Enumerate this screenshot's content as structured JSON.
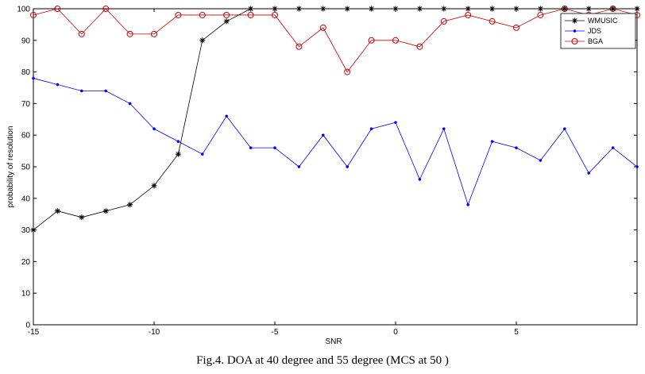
{
  "chart_data": {
    "type": "line",
    "xlabel": "SNR",
    "ylabel": "probability of resolution",
    "xlim": [
      -15,
      10
    ],
    "ylim": [
      0,
      100
    ],
    "xticks": [
      -15,
      -10,
      -5,
      0,
      5
    ],
    "yticks": [
      0,
      10,
      20,
      30,
      40,
      50,
      60,
      70,
      80,
      90,
      100
    ],
    "grid": false,
    "legend_position": "top-right",
    "x": [
      -15,
      -14,
      -13,
      -12,
      -11,
      -10,
      -9,
      -8,
      -7,
      -6,
      -5,
      -4,
      -3,
      -2,
      -1,
      0,
      1,
      2,
      3,
      4,
      5,
      6,
      7,
      8,
      9,
      10
    ],
    "series": [
      {
        "name": "WMUSIC",
        "color": "#000000",
        "marker": "star",
        "values": [
          30,
          36,
          34,
          36,
          38,
          44,
          54,
          90,
          96,
          100,
          100,
          100,
          100,
          100,
          100,
          100,
          100,
          100,
          100,
          100,
          100,
          100,
          100,
          100,
          100,
          100
        ]
      },
      {
        "name": "JDS",
        "color": "#0000ff",
        "marker": "dot",
        "values": [
          78,
          76,
          74,
          74,
          70,
          62,
          58,
          54,
          66,
          56,
          56,
          50,
          60,
          50,
          62,
          64,
          46,
          62,
          38,
          58,
          56,
          52,
          62,
          48,
          56,
          50
        ]
      },
      {
        "name": "BGA",
        "color": "#cc0000",
        "marker": "circle",
        "values": [
          98,
          100,
          92,
          100,
          92,
          92,
          98,
          98,
          98,
          98,
          98,
          88,
          94,
          80,
          90,
          90,
          88,
          96,
          98,
          96,
          94,
          98,
          100,
          98,
          100,
          98
        ]
      }
    ]
  },
  "caption": "Fig.4. DOA at 40 degree and 55 degree (MCS at 50 )"
}
